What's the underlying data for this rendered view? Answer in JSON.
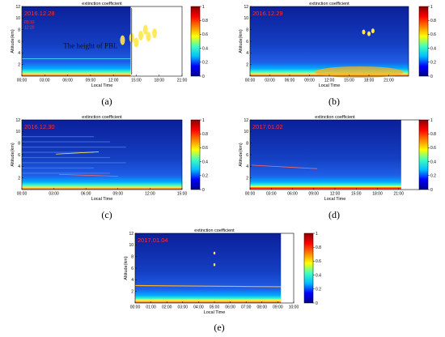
{
  "colors": {
    "field_low": "#0b1f9a",
    "field_mid": "#1c5ae6",
    "layer_high": "#ffe84a",
    "cbar_stops": [
      "#00008b",
      "#0000ff",
      "#00bfff",
      "#40ffbf",
      "#ffff00",
      "#ff8000",
      "#ff0000",
      "#8b0000"
    ]
  },
  "chart_data": [
    {
      "type": "heatmap",
      "id": "a",
      "title": "extinction coefficient",
      "xlabel": "Local Time",
      "ylabel": "Altitude(km)",
      "stamp": "2016.12.28",
      "stamp_extra": [
        "03:10",
        "12:20"
      ],
      "annotation": "The height of PBL",
      "x_ticks": [
        "00:00",
        "03:00",
        "06:00",
        "09:00",
        "12:00",
        "15:00",
        "18:00",
        "21:00"
      ],
      "x_range": [
        0,
        21
      ],
      "y_ticks": [
        "2",
        "4",
        "6",
        "8",
        "10",
        "12"
      ],
      "y_range": [
        0,
        12
      ],
      "cbar_ticks": [
        "0",
        "0.2",
        "0.4",
        "0.6",
        "0.8",
        "1"
      ],
      "caption": "(a)"
    },
    {
      "type": "heatmap",
      "id": "b",
      "title": "extinction coefficient",
      "xlabel": "Local Time",
      "ylabel": "Altitude(km)",
      "stamp": "2016.12.29",
      "stamp_extra": [],
      "annotation": "",
      "x_ticks": [
        "00:00",
        "03:00",
        "06:00",
        "09:00",
        "12:00",
        "15:00",
        "18:00",
        "21:00"
      ],
      "x_range": [
        0,
        24
      ],
      "y_ticks": [
        "2",
        "4",
        "6",
        "8",
        "10",
        "12"
      ],
      "y_range": [
        0,
        12
      ],
      "cbar_ticks": [
        "0",
        "0.2",
        "0.4",
        "0.6",
        "0.8",
        "1"
      ],
      "caption": "(b)"
    },
    {
      "type": "heatmap",
      "id": "c",
      "title": "extinction coefficient",
      "xlabel": "Local Time",
      "ylabel": "Altitude(km)",
      "stamp": "2016.12.30",
      "stamp_extra": [],
      "annotation": "",
      "x_ticks": [
        "00:00",
        "03:00",
        "06:00",
        "09:00",
        "12:00",
        "15:00"
      ],
      "x_range": [
        0,
        15
      ],
      "y_ticks": [
        "2",
        "4",
        "6",
        "8",
        "10",
        "12"
      ],
      "y_range": [
        0,
        12
      ],
      "cbar_ticks": [
        "0",
        "0.2",
        "0.4",
        "0.6",
        "0.8",
        "1"
      ],
      "caption": "(c)"
    },
    {
      "type": "heatmap",
      "id": "d",
      "title": "extinction coefficient",
      "xlabel": "Local Time",
      "ylabel": "Altitude(km)",
      "stamp": "2017.01.02",
      "stamp_extra": [],
      "annotation": "",
      "x_ticks": [
        "00:00",
        "03:00",
        "06:00",
        "09:00",
        "12:00",
        "15:00",
        "18:00",
        "21:00"
      ],
      "x_range": [
        0,
        24
      ],
      "y_ticks": [
        "2",
        "4",
        "6",
        "8",
        "10",
        "12"
      ],
      "y_range": [
        0,
        12
      ],
      "cbar_ticks": [
        "0",
        "0.2",
        "0.4",
        "0.6",
        "0.8",
        "1"
      ],
      "caption": "(d)"
    },
    {
      "type": "heatmap",
      "id": "e",
      "title": "extinction coefficient",
      "xlabel": "Local Time",
      "ylabel": "Altitude(km)",
      "stamp": "2017.01.04",
      "stamp_extra": [],
      "annotation": "",
      "x_ticks": [
        "00:00",
        "01:00",
        "02:00",
        "03:00",
        "04:00",
        "05:00",
        "06:00",
        "07:00",
        "08:00",
        "09:00",
        "10:00"
      ],
      "x_range": [
        0,
        10
      ],
      "y_ticks": [
        "2",
        "4",
        "6",
        "8",
        "10",
        "12"
      ],
      "y_range": [
        0,
        12
      ],
      "cbar_ticks": [
        "0",
        "0.2",
        "0.4",
        "0.6",
        "0.8",
        "1"
      ],
      "caption": "(e)"
    }
  ]
}
